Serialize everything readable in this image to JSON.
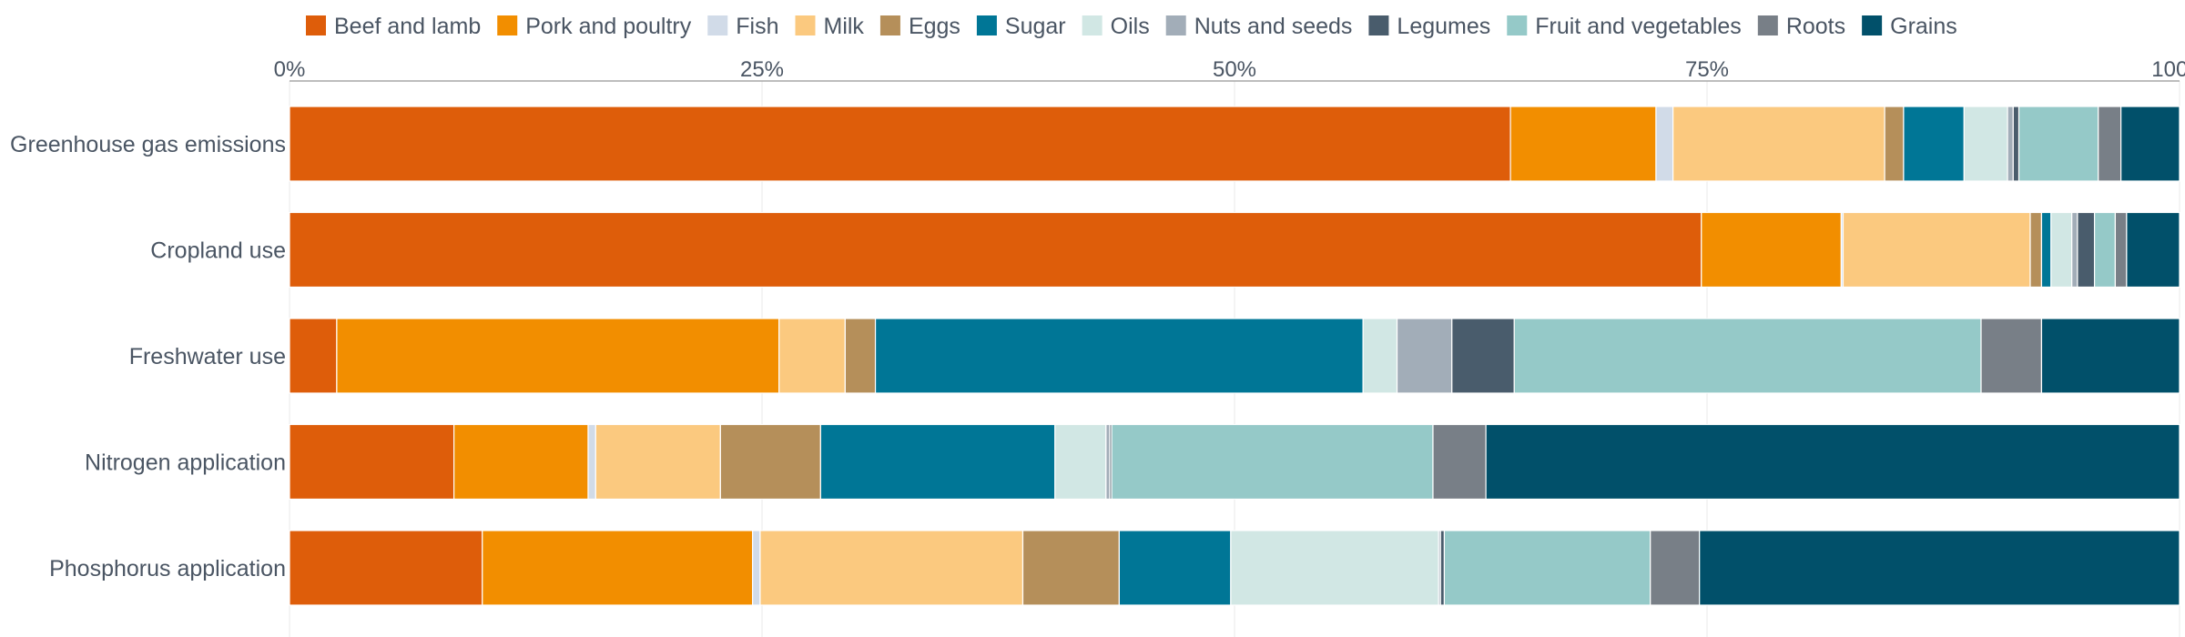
{
  "chart_data": {
    "type": "bar",
    "orientation": "horizontal",
    "stacked": true,
    "normalized": true,
    "title": "",
    "xlabel": "",
    "ylabel": "",
    "xlim": [
      0,
      100
    ],
    "x_ticks": [
      "0%",
      "25%",
      "50%",
      "75%",
      "100%"
    ],
    "grid": true,
    "legend": "top",
    "categories": [
      "Greenhouse gas emissions",
      "Cropland use",
      "Freshwater use",
      "Nitrogen application",
      "Phosphorus application"
    ],
    "series": [
      {
        "name": "Beef and lamb",
        "color": "#de5d0a",
        "values": [
          64.6,
          74.7,
          2.5,
          8.7,
          10.2
        ]
      },
      {
        "name": "Pork and poultry",
        "color": "#f28e00",
        "values": [
          7.7,
          7.4,
          23.4,
          7.1,
          14.3
        ]
      },
      {
        "name": "Fish",
        "color": "#d1dbe8",
        "values": [
          0.9,
          0.1,
          0.0,
          0.4,
          0.4
        ]
      },
      {
        "name": "Milk",
        "color": "#fbc97f",
        "values": [
          11.2,
          9.9,
          3.5,
          6.6,
          13.9
        ]
      },
      {
        "name": "Eggs",
        "color": "#b58f5a",
        "values": [
          1.0,
          0.6,
          1.6,
          5.3,
          5.1
        ]
      },
      {
        "name": "Sugar",
        "color": "#007696",
        "values": [
          3.2,
          0.5,
          25.8,
          12.4,
          5.9
        ]
      },
      {
        "name": "Oils",
        "color": "#d1e7e4",
        "values": [
          2.3,
          1.1,
          1.8,
          2.7,
          11.0
        ]
      },
      {
        "name": "Nuts and seeds",
        "color": "#a2adb8",
        "values": [
          0.3,
          0.3,
          2.9,
          0.2,
          0.1
        ]
      },
      {
        "name": "Legumes",
        "color": "#495c6c",
        "values": [
          0.3,
          0.9,
          3.3,
          0.1,
          0.2
        ]
      },
      {
        "name": "Fruit and vegetables",
        "color": "#95c9c8",
        "values": [
          4.2,
          1.1,
          24.7,
          17.0,
          10.9
        ]
      },
      {
        "name": "Roots",
        "color": "#787f87",
        "values": [
          1.2,
          0.6,
          3.2,
          2.8,
          2.6
        ]
      },
      {
        "name": "Grains",
        "color": "#01506a",
        "values": [
          3.1,
          2.8,
          7.3,
          36.7,
          25.4
        ]
      }
    ]
  }
}
